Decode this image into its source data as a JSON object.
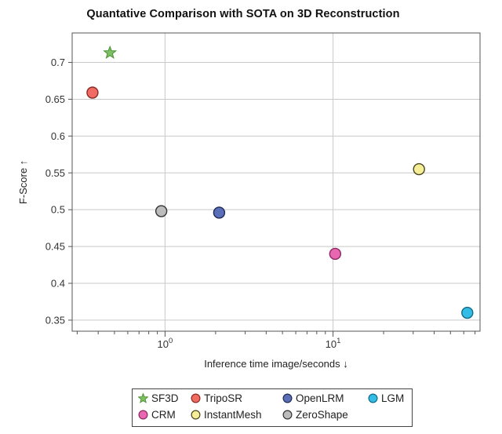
{
  "chart_data": {
    "type": "scatter",
    "title": "Quantative Comparison with SOTA on 3D Reconstruction",
    "xlabel": "Inference time  image/seconds ↓",
    "ylabel": "F-Score ↑",
    "xscale": "log",
    "xlim": [
      0.28,
      75
    ],
    "ylim": [
      0.335,
      0.74
    ],
    "ymajor_ticks": [
      0.35,
      0.4,
      0.45,
      0.5,
      0.55,
      0.6,
      0.65,
      0.7
    ],
    "ytick_labels": [
      "0.35",
      "0.4",
      "0.45",
      "0.5",
      "0.55",
      "0.6",
      "0.65",
      "0.7"
    ],
    "xmajor_ticks": [
      1,
      10
    ],
    "xtick_labels": [
      {
        "base": "10",
        "exp": "0"
      },
      {
        "base": "10",
        "exp": "1"
      }
    ],
    "grid": true,
    "legend_position": "bottom-center",
    "series": [
      {
        "name": "SF3D",
        "marker": "star",
        "color": "#7cc063",
        "edge": "#4a8f32",
        "x": 0.47,
        "y": 0.713
      },
      {
        "name": "TripoSR",
        "marker": "circle",
        "color": "#f26b63",
        "edge": "#8a2a25",
        "x": 0.37,
        "y": 0.659
      },
      {
        "name": "OpenLRM",
        "marker": "circle",
        "color": "#5a6fb8",
        "edge": "#1f2a55",
        "x": 2.1,
        "y": 0.496
      },
      {
        "name": "LGM",
        "marker": "circle",
        "color": "#33bde6",
        "edge": "#126a87",
        "x": 63,
        "y": 0.36
      },
      {
        "name": "CRM",
        "marker": "circle",
        "color": "#e867b0",
        "edge": "#8c2a63",
        "x": 10.3,
        "y": 0.44
      },
      {
        "name": "InstantMesh",
        "marker": "circle",
        "color": "#f6ee96",
        "edge": "#4a4620",
        "x": 32.5,
        "y": 0.555
      },
      {
        "name": "ZeroShape",
        "marker": "circle",
        "color": "#bcbcbc",
        "edge": "#333333",
        "x": 0.95,
        "y": 0.498
      }
    ]
  }
}
